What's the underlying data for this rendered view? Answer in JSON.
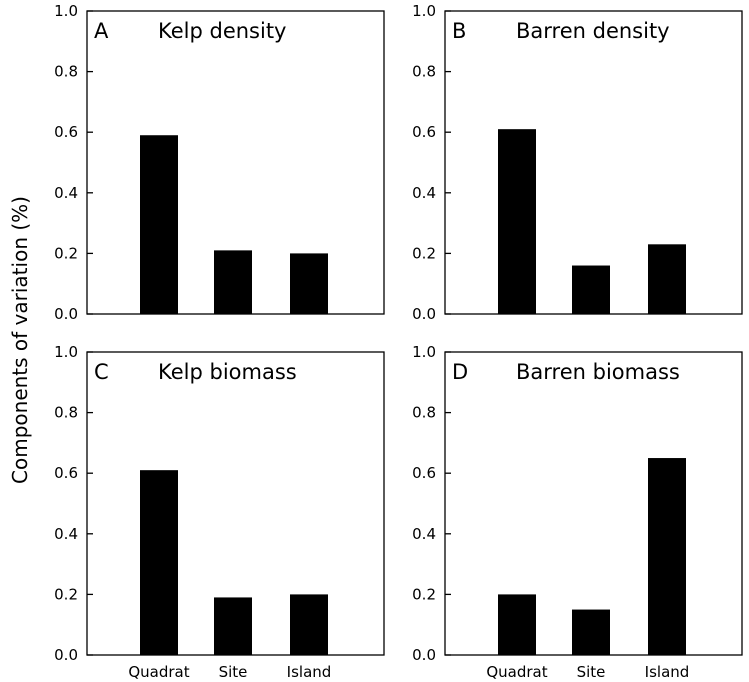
{
  "ylabel": "Components of variation (%)",
  "chart_data": [
    {
      "type": "bar",
      "letter": "A",
      "title": "Kelp density",
      "categories": [
        "Quadrat",
        "Site",
        "Island"
      ],
      "values": [
        0.59,
        0.21,
        0.2
      ],
      "ylim": [
        0,
        1.0
      ],
      "yticks": [
        "0.0",
        "0.2",
        "0.4",
        "0.6",
        "0.8",
        "1.0"
      ],
      "show_xlabels": false
    },
    {
      "type": "bar",
      "letter": "B",
      "title": "Barren density",
      "categories": [
        "Quadrat",
        "Site",
        "Island"
      ],
      "values": [
        0.61,
        0.16,
        0.23
      ],
      "ylim": [
        0,
        1.0
      ],
      "yticks": [
        "0.0",
        "0.2",
        "0.4",
        "0.6",
        "0.8",
        "1.0"
      ],
      "show_xlabels": false
    },
    {
      "type": "bar",
      "letter": "C",
      "title": "Kelp biomass",
      "categories": [
        "Quadrat",
        "Site",
        "Island"
      ],
      "values": [
        0.61,
        0.19,
        0.2
      ],
      "ylim": [
        0,
        1.0
      ],
      "yticks": [
        "0.0",
        "0.2",
        "0.4",
        "0.6",
        "0.8",
        "1.0"
      ],
      "show_xlabels": true
    },
    {
      "type": "bar",
      "letter": "D",
      "title": "Barren biomass",
      "categories": [
        "Quadrat",
        "Site",
        "Island"
      ],
      "values": [
        0.2,
        0.15,
        0.65
      ],
      "ylim": [
        0,
        1.0
      ],
      "yticks": [
        "0.0",
        "0.2",
        "0.4",
        "0.6",
        "0.8",
        "1.0"
      ],
      "show_xlabels": true
    }
  ]
}
